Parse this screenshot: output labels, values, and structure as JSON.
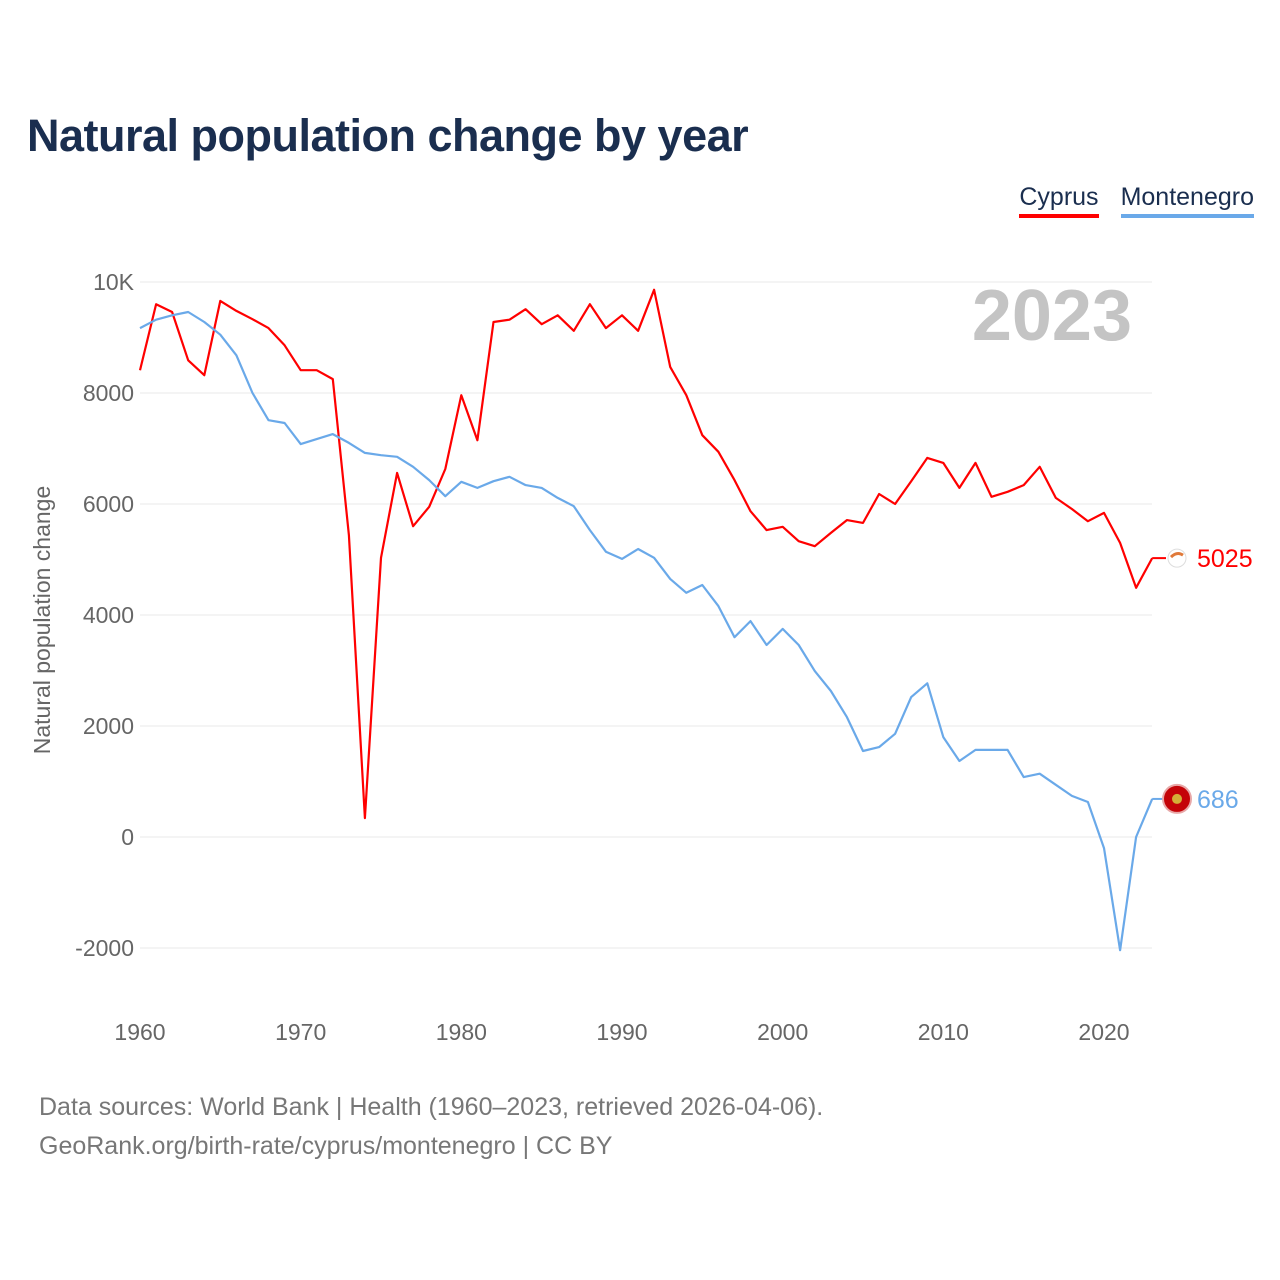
{
  "title": "Natural population change by year",
  "legend": [
    {
      "name": "Cyprus",
      "color": "#ff0000"
    },
    {
      "name": "Montenegro",
      "color": "#6aa9e9"
    }
  ],
  "footer": {
    "line1": "Data sources: World Bank | Health (1960–2023, retrieved 2026-04-06).",
    "line2": "GeoRank.org/birth-rate/cyprus/montenegro | CC BY"
  },
  "chart_data": {
    "type": "line",
    "title": "Natural population change by year",
    "xlabel": "",
    "ylabel": "Natural population change",
    "year_label": "2023",
    "xlim": [
      1960,
      2023
    ],
    "ylim": [
      -2000,
      10000
    ],
    "x_ticks": [
      "1960",
      "1970",
      "1980",
      "1990",
      "2000",
      "2010",
      "2020"
    ],
    "y_ticks": [
      "-2000",
      "0",
      "2000",
      "4000",
      "6000",
      "8000",
      "10K"
    ],
    "y_tick_values": [
      -2000,
      0,
      2000,
      4000,
      6000,
      8000,
      10000
    ],
    "x": [
      1960,
      1961,
      1962,
      1963,
      1964,
      1965,
      1966,
      1967,
      1968,
      1969,
      1970,
      1971,
      1972,
      1973,
      1974,
      1975,
      1976,
      1977,
      1978,
      1979,
      1980,
      1981,
      1982,
      1983,
      1984,
      1985,
      1986,
      1987,
      1988,
      1989,
      1990,
      1991,
      1992,
      1993,
      1994,
      1995,
      1996,
      1997,
      1998,
      1999,
      2000,
      2001,
      2002,
      2003,
      2004,
      2005,
      2006,
      2007,
      2008,
      2009,
      2010,
      2011,
      2012,
      2013,
      2014,
      2015,
      2016,
      2017,
      2018,
      2019,
      2020,
      2021,
      2022,
      2023
    ],
    "series": [
      {
        "name": "Cyprus",
        "color": "#ff0000",
        "end_label": "5025",
        "values": [
          8410,
          9600,
          9460,
          8590,
          8320,
          9660,
          9480,
          9330,
          9170,
          8860,
          8410,
          8410,
          8250,
          5440,
          340,
          5030,
          6560,
          5600,
          5950,
          6630,
          7960,
          7150,
          9280,
          9320,
          9510,
          9240,
          9400,
          9120,
          9600,
          9170,
          9400,
          9120,
          9860,
          8470,
          7960,
          7240,
          6940,
          6430,
          5870,
          5530,
          5590,
          5330,
          5240,
          5480,
          5710,
          5660,
          6180,
          6000,
          6410,
          6830,
          6740,
          6290,
          6740,
          6130,
          6220,
          6340,
          6670,
          6110,
          5910,
          5690,
          5840,
          5300,
          4490,
          5025
        ]
      },
      {
        "name": "Montenegro",
        "color": "#6aa9e9",
        "end_label": "686",
        "values": [
          9170,
          9320,
          9400,
          9460,
          9280,
          9050,
          8680,
          8000,
          7510,
          7460,
          7080,
          7170,
          7260,
          7100,
          6920,
          6880,
          6850,
          6670,
          6430,
          6140,
          6400,
          6290,
          6410,
          6490,
          6340,
          6290,
          6110,
          5960,
          5530,
          5140,
          5010,
          5190,
          5030,
          4650,
          4400,
          4540,
          4160,
          3600,
          3890,
          3460,
          3750,
          3460,
          2990,
          2630,
          2160,
          1550,
          1620,
          1860,
          2520,
          2770,
          1800,
          1370,
          1570,
          1570,
          1570,
          1080,
          1140,
          940,
          740,
          630,
          -200,
          -2040,
          0,
          686
        ]
      }
    ],
    "grid": true,
    "legend_position": "top-right"
  }
}
